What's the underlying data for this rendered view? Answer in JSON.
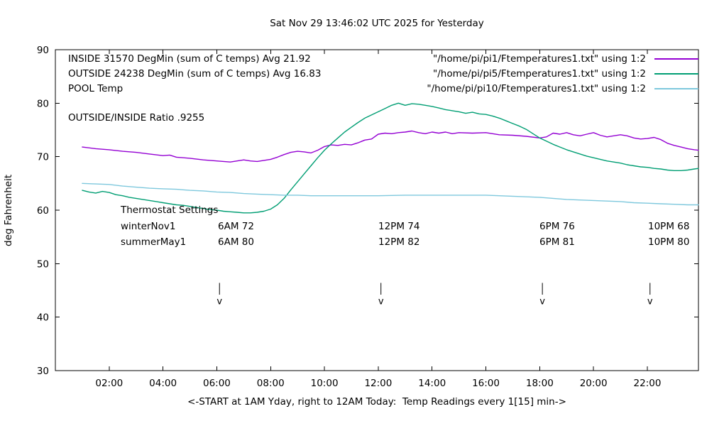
{
  "chart_data": {
    "type": "line",
    "title": "Sat Nov 29 13:46:02 UTC 2025 for Yesterday",
    "ylabel": "deg Fahrenheit",
    "xlabel": "<-START at 1AM Yday, right to 12AM Today:  Temp Readings every 1[15] min->",
    "xlim": [
      0,
      23.9
    ],
    "ylim": [
      30,
      90
    ],
    "grid": false,
    "legend_position": "top-left-inside",
    "x_ticks": [
      {
        "t": 2,
        "label": "02:00"
      },
      {
        "t": 4,
        "label": "04:00"
      },
      {
        "t": 6,
        "label": "06:00"
      },
      {
        "t": 8,
        "label": "08:00"
      },
      {
        "t": 10,
        "label": "10:00"
      },
      {
        "t": 12,
        "label": "12:00"
      },
      {
        "t": 14,
        "label": "14:00"
      },
      {
        "t": 16,
        "label": "16:00"
      },
      {
        "t": 18,
        "label": "18:00"
      },
      {
        "t": 20,
        "label": "20:00"
      },
      {
        "t": 22,
        "label": "22:00"
      }
    ],
    "y_ticks": [
      30,
      40,
      50,
      60,
      70,
      80,
      90
    ],
    "arrows": {
      "glyph": "v",
      "times": [
        6.1,
        12.1,
        18.1,
        22.1
      ]
    },
    "annotations": {
      "ratio_text": "OUTSIDE/INSIDE Ratio .9255",
      "thermostat": {
        "title": "Thermostat Settings",
        "rows": [
          {
            "name": "winterNov1",
            "settings": [
              "6AM 72",
              "12PM 74",
              "6PM 76",
              "10PM 68"
            ]
          },
          {
            "name": "summerMay1",
            "settings": [
              "6AM 80",
              "12PM 82",
              "6PM 81",
              "10PM 80"
            ]
          }
        ]
      }
    },
    "series": [
      {
        "name": "INSIDE",
        "label": "INSIDE 31570 DegMin (sum of C temps) Avg 21.92",
        "file": "\"/home/pi/pi1/Ftemperatures1.txt\" using 1:2",
        "color": "#9400d3",
        "points": [
          [
            1,
            71.8
          ],
          [
            1.5,
            71.5
          ],
          [
            2,
            71.3
          ],
          [
            2.5,
            71.0
          ],
          [
            3,
            70.8
          ],
          [
            3.5,
            70.5
          ],
          [
            4,
            70.2
          ],
          [
            4.25,
            70.3
          ],
          [
            4.5,
            69.9
          ],
          [
            5,
            69.7
          ],
          [
            5.5,
            69.4
          ],
          [
            6,
            69.2
          ],
          [
            6.25,
            69.1
          ],
          [
            6.5,
            69.0
          ],
          [
            6.75,
            69.2
          ],
          [
            7,
            69.4
          ],
          [
            7.25,
            69.2
          ],
          [
            7.5,
            69.1
          ],
          [
            7.75,
            69.3
          ],
          [
            8,
            69.5
          ],
          [
            8.25,
            69.9
          ],
          [
            8.5,
            70.4
          ],
          [
            8.75,
            70.8
          ],
          [
            9,
            71.0
          ],
          [
            9.25,
            70.9
          ],
          [
            9.5,
            70.7
          ],
          [
            9.75,
            71.2
          ],
          [
            10,
            71.9
          ],
          [
            10.25,
            72.2
          ],
          [
            10.5,
            72.1
          ],
          [
            10.75,
            72.3
          ],
          [
            11,
            72.2
          ],
          [
            11.25,
            72.6
          ],
          [
            11.5,
            73.1
          ],
          [
            11.75,
            73.3
          ],
          [
            12,
            74.2
          ],
          [
            12.25,
            74.4
          ],
          [
            12.5,
            74.3
          ],
          [
            12.75,
            74.5
          ],
          [
            13,
            74.6
          ],
          [
            13.25,
            74.8
          ],
          [
            13.5,
            74.5
          ],
          [
            13.75,
            74.3
          ],
          [
            14,
            74.6
          ],
          [
            14.25,
            74.4
          ],
          [
            14.5,
            74.6
          ],
          [
            14.75,
            74.3
          ],
          [
            15,
            74.5
          ],
          [
            15.5,
            74.4
          ],
          [
            16,
            74.5
          ],
          [
            16.25,
            74.3
          ],
          [
            16.5,
            74.1
          ],
          [
            17,
            74.0
          ],
          [
            17.5,
            73.8
          ],
          [
            18,
            73.5
          ],
          [
            18.25,
            73.7
          ],
          [
            18.5,
            74.4
          ],
          [
            18.75,
            74.2
          ],
          [
            19,
            74.5
          ],
          [
            19.25,
            74.1
          ],
          [
            19.5,
            73.9
          ],
          [
            19.75,
            74.2
          ],
          [
            20,
            74.5
          ],
          [
            20.25,
            74.0
          ],
          [
            20.5,
            73.7
          ],
          [
            21,
            74.1
          ],
          [
            21.25,
            73.9
          ],
          [
            21.5,
            73.5
          ],
          [
            21.75,
            73.3
          ],
          [
            22,
            73.4
          ],
          [
            22.25,
            73.6
          ],
          [
            22.5,
            73.2
          ],
          [
            22.75,
            72.5
          ],
          [
            23,
            72.1
          ],
          [
            23.25,
            71.8
          ],
          [
            23.5,
            71.5
          ],
          [
            23.75,
            71.3
          ],
          [
            23.9,
            71.2
          ]
        ]
      },
      {
        "name": "OUTSIDE",
        "label": "OUTSIDE 24238 DegMin (sum of C temps) Avg 16.83",
        "file": "\"/home/pi/pi5/Ftemperatures1.txt\" using 1:2",
        "color": "#009e73",
        "points": [
          [
            1,
            63.7
          ],
          [
            1.25,
            63.4
          ],
          [
            1.5,
            63.2
          ],
          [
            1.75,
            63.5
          ],
          [
            2,
            63.3
          ],
          [
            2.25,
            62.9
          ],
          [
            2.5,
            62.7
          ],
          [
            2.75,
            62.4
          ],
          [
            3,
            62.2
          ],
          [
            3.25,
            62.0
          ],
          [
            3.5,
            61.8
          ],
          [
            3.75,
            61.6
          ],
          [
            4,
            61.4
          ],
          [
            4.25,
            61.2
          ],
          [
            4.5,
            61.0
          ],
          [
            4.75,
            60.9
          ],
          [
            5,
            60.7
          ],
          [
            5.25,
            60.5
          ],
          [
            5.5,
            60.3
          ],
          [
            5.75,
            60.1
          ],
          [
            6,
            60.0
          ],
          [
            6.25,
            59.8
          ],
          [
            6.5,
            59.7
          ],
          [
            6.75,
            59.6
          ],
          [
            7,
            59.5
          ],
          [
            7.25,
            59.5
          ],
          [
            7.5,
            59.6
          ],
          [
            7.75,
            59.8
          ],
          [
            8,
            60.2
          ],
          [
            8.25,
            61.0
          ],
          [
            8.5,
            62.2
          ],
          [
            8.75,
            63.8
          ],
          [
            9,
            65.3
          ],
          [
            9.25,
            66.8
          ],
          [
            9.5,
            68.3
          ],
          [
            9.75,
            69.8
          ],
          [
            10,
            71.2
          ],
          [
            10.25,
            72.4
          ],
          [
            10.5,
            73.5
          ],
          [
            10.75,
            74.6
          ],
          [
            11,
            75.5
          ],
          [
            11.25,
            76.4
          ],
          [
            11.5,
            77.2
          ],
          [
            11.75,
            77.8
          ],
          [
            12,
            78.4
          ],
          [
            12.25,
            79.0
          ],
          [
            12.5,
            79.6
          ],
          [
            12.75,
            80.0
          ],
          [
            13,
            79.6
          ],
          [
            13.25,
            79.9
          ],
          [
            13.5,
            79.8
          ],
          [
            13.75,
            79.6
          ],
          [
            14,
            79.4
          ],
          [
            14.25,
            79.1
          ],
          [
            14.5,
            78.8
          ],
          [
            14.75,
            78.6
          ],
          [
            15,
            78.4
          ],
          [
            15.25,
            78.1
          ],
          [
            15.5,
            78.3
          ],
          [
            15.75,
            78.0
          ],
          [
            16,
            77.9
          ],
          [
            16.25,
            77.6
          ],
          [
            16.5,
            77.2
          ],
          [
            16.75,
            76.7
          ],
          [
            17,
            76.2
          ],
          [
            17.25,
            75.7
          ],
          [
            17.5,
            75.1
          ],
          [
            17.75,
            74.3
          ],
          [
            18,
            73.5
          ],
          [
            18.25,
            72.9
          ],
          [
            18.5,
            72.3
          ],
          [
            18.75,
            71.8
          ],
          [
            19,
            71.3
          ],
          [
            19.25,
            70.9
          ],
          [
            19.5,
            70.5
          ],
          [
            19.75,
            70.1
          ],
          [
            20,
            69.8
          ],
          [
            20.25,
            69.5
          ],
          [
            20.5,
            69.2
          ],
          [
            20.75,
            69.0
          ],
          [
            21,
            68.8
          ],
          [
            21.25,
            68.5
          ],
          [
            21.5,
            68.3
          ],
          [
            21.75,
            68.1
          ],
          [
            22,
            68.0
          ],
          [
            22.25,
            67.8
          ],
          [
            22.5,
            67.7
          ],
          [
            22.75,
            67.5
          ],
          [
            23,
            67.4
          ],
          [
            23.25,
            67.4
          ],
          [
            23.5,
            67.5
          ],
          [
            23.75,
            67.7
          ],
          [
            23.9,
            67.8
          ]
        ]
      },
      {
        "name": "POOL",
        "label": "POOL Temp",
        "file": "\"/home/pi/pi10/Ftemperatures1.txt\" using 1:2",
        "color": "#7ec8dd",
        "points": [
          [
            1,
            65.0
          ],
          [
            1.5,
            64.9
          ],
          [
            2,
            64.8
          ],
          [
            2.5,
            64.5
          ],
          [
            3,
            64.3
          ],
          [
            3.5,
            64.1
          ],
          [
            4,
            64.0
          ],
          [
            4.5,
            63.9
          ],
          [
            5,
            63.7
          ],
          [
            5.5,
            63.6
          ],
          [
            6,
            63.4
          ],
          [
            6.5,
            63.3
          ],
          [
            7,
            63.1
          ],
          [
            7.5,
            63.0
          ],
          [
            8,
            62.9
          ],
          [
            8.5,
            62.8
          ],
          [
            9,
            62.8
          ],
          [
            9.5,
            62.7
          ],
          [
            10,
            62.7
          ],
          [
            11,
            62.7
          ],
          [
            12,
            62.7
          ],
          [
            13,
            62.8
          ],
          [
            14,
            62.8
          ],
          [
            15,
            62.8
          ],
          [
            16,
            62.8
          ],
          [
            16.5,
            62.7
          ],
          [
            17,
            62.6
          ],
          [
            17.5,
            62.5
          ],
          [
            18,
            62.4
          ],
          [
            18.5,
            62.2
          ],
          [
            19,
            62.0
          ],
          [
            19.5,
            61.9
          ],
          [
            20,
            61.8
          ],
          [
            20.5,
            61.7
          ],
          [
            21,
            61.6
          ],
          [
            21.5,
            61.4
          ],
          [
            22,
            61.3
          ],
          [
            22.5,
            61.2
          ],
          [
            23,
            61.1
          ],
          [
            23.5,
            61.0
          ],
          [
            23.9,
            61.0
          ]
        ]
      }
    ]
  }
}
